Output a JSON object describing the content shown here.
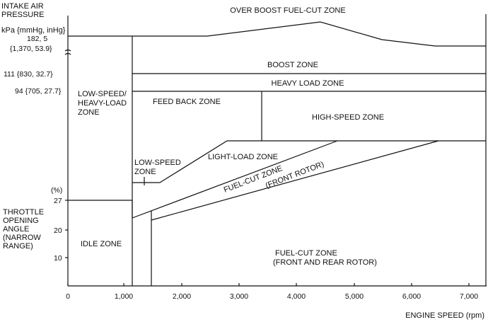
{
  "y_axis": {
    "title_lines": [
      "INTAKE AIR",
      "PRESSURE"
    ],
    "unit": "kPa {mmHg, inHg}",
    "pressure_ticks": [
      {
        "lines": [
          "182, 5",
          "{1,370, 53.9}"
        ]
      },
      {
        "lines": [
          "111 {830, 32.7}"
        ]
      },
      {
        "lines": [
          "94 {705, 27.7}"
        ]
      }
    ],
    "throttle_unit": "(%)",
    "throttle_title_lines": [
      "THROTTLE",
      "OPENING",
      "ANGLE",
      "(NARROW",
      "RANGE)"
    ],
    "throttle_ticks": [
      "27",
      "20",
      "10"
    ]
  },
  "x_axis": {
    "ticks": [
      "0",
      "1,000",
      "2,000",
      "3,000",
      "4,000",
      "5,000",
      "6,000",
      "7,000"
    ],
    "label": "ENGINE SPEED (rpm)"
  },
  "zones": {
    "over_boost": "OVER BOOST FUEL-CUT ZONE",
    "boost": "BOOST ZONE",
    "heavy_load": "HEAVY LOAD ZONE",
    "low_speed_heavy": [
      "LOW-SPEED/",
      "HEAVY-LOAD",
      "ZONE"
    ],
    "feed_back": "FEED BACK ZONE",
    "high_speed": "HIGH-SPEED ZONE",
    "low_speed": [
      "LOW-SPEED",
      "ZONE"
    ],
    "light_load": "LIGHT-LOAD ZONE",
    "fuel_cut_front": [
      "FUEL-CUT ZONE",
      "(FRONT ROTOR)"
    ],
    "idle": "IDLE ZONE",
    "fuel_cut_front_rear": [
      "FUEL-CUT ZONE",
      "(FRONT AND REAR ROTOR)"
    ]
  }
}
